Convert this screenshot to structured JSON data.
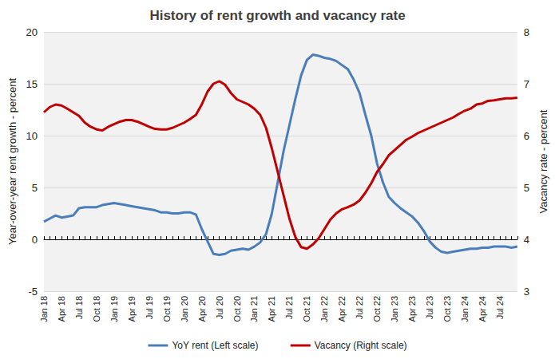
{
  "chart_data": {
    "type": "line",
    "title": "History of rent growth and vacancy rate",
    "y_label": "Year-over-year rent growth - percent",
    "y2_label": "Vacancy rate - percent",
    "categories": [
      "Jan 18",
      null,
      null,
      "Apr 18",
      null,
      null,
      "Jul 18",
      null,
      null,
      "Oct 18",
      null,
      null,
      "Jan 19",
      null,
      null,
      "Apr 19",
      null,
      null,
      "Jul 19",
      null,
      null,
      "Oct 19",
      null,
      null,
      "Jan 20",
      null,
      null,
      "Apr 20",
      null,
      null,
      "Jul 20",
      null,
      null,
      "Oct 20",
      null,
      null,
      "Jan 21",
      null,
      null,
      "Apr 21",
      null,
      null,
      "Jul 21",
      null,
      null,
      "Oct 21",
      null,
      null,
      "Jan 22",
      null,
      null,
      "Apr 22",
      null,
      null,
      "Jul 22",
      null,
      null,
      "Oct 22",
      null,
      null,
      "Jan 23",
      null,
      null,
      "Apr 23",
      null,
      null,
      "Jul 23",
      null,
      null,
      "Oct 23",
      null,
      null,
      "Jan 24",
      null,
      null,
      "Apr 24",
      null,
      null,
      "Jul 24",
      null,
      null,
      null
    ],
    "series": [
      {
        "name": "YoY rent (Left scale)",
        "color": "#4a7ebb",
        "axis": "y",
        "values": [
          1.7,
          2.0,
          2.3,
          2.1,
          2.2,
          2.3,
          3.0,
          3.1,
          3.1,
          3.1,
          3.3,
          3.4,
          3.5,
          3.4,
          3.3,
          3.2,
          3.1,
          3.0,
          2.9,
          2.8,
          2.6,
          2.6,
          2.5,
          2.5,
          2.6,
          2.6,
          2.4,
          1.0,
          -0.2,
          -1.4,
          -1.5,
          -1.4,
          -1.1,
          -1.0,
          -0.9,
          -1.0,
          -0.7,
          -0.3,
          0.5,
          2.5,
          5.5,
          8.5,
          11.0,
          13.5,
          15.8,
          17.3,
          17.8,
          17.7,
          17.5,
          17.4,
          17.2,
          16.8,
          16.4,
          15.4,
          14.1,
          12.0,
          10.0,
          7.3,
          5.5,
          4.1,
          3.5,
          3.0,
          2.6,
          2.2,
          1.6,
          0.8,
          -0.2,
          -0.8,
          -1.2,
          -1.3,
          -1.2,
          -1.1,
          -1.0,
          -0.9,
          -0.9,
          -0.8,
          -0.8,
          -0.7,
          -0.7,
          -0.7,
          -0.8,
          -0.7
        ]
      },
      {
        "name": "Vacancy (Right scale)",
        "color": "#c00000",
        "axis": "y2",
        "values": [
          6.45,
          6.55,
          6.6,
          6.58,
          6.52,
          6.45,
          6.38,
          6.25,
          6.17,
          6.12,
          6.1,
          6.17,
          6.22,
          6.27,
          6.3,
          6.3,
          6.27,
          6.22,
          6.17,
          6.13,
          6.12,
          6.12,
          6.15,
          6.2,
          6.25,
          6.32,
          6.4,
          6.6,
          6.85,
          7.0,
          7.05,
          6.98,
          6.82,
          6.7,
          6.65,
          6.6,
          6.52,
          6.4,
          6.15,
          5.75,
          5.3,
          4.85,
          4.4,
          4.05,
          3.85,
          3.82,
          3.9,
          4.02,
          4.2,
          4.38,
          4.5,
          4.58,
          4.62,
          4.67,
          4.75,
          4.9,
          5.08,
          5.3,
          5.45,
          5.62,
          5.72,
          5.82,
          5.92,
          5.98,
          6.05,
          6.1,
          6.15,
          6.2,
          6.25,
          6.3,
          6.35,
          6.42,
          6.48,
          6.52,
          6.6,
          6.62,
          6.67,
          6.68,
          6.7,
          6.72,
          6.72,
          6.73
        ]
      }
    ],
    "ylim": [
      -5,
      20
    ],
    "yticks": [
      -5,
      0,
      5,
      10,
      15,
      20
    ],
    "y2lim": [
      3,
      8
    ],
    "y2ticks": [
      3,
      4,
      5,
      6,
      7,
      8
    ],
    "grid": true,
    "legend": "bottom"
  }
}
